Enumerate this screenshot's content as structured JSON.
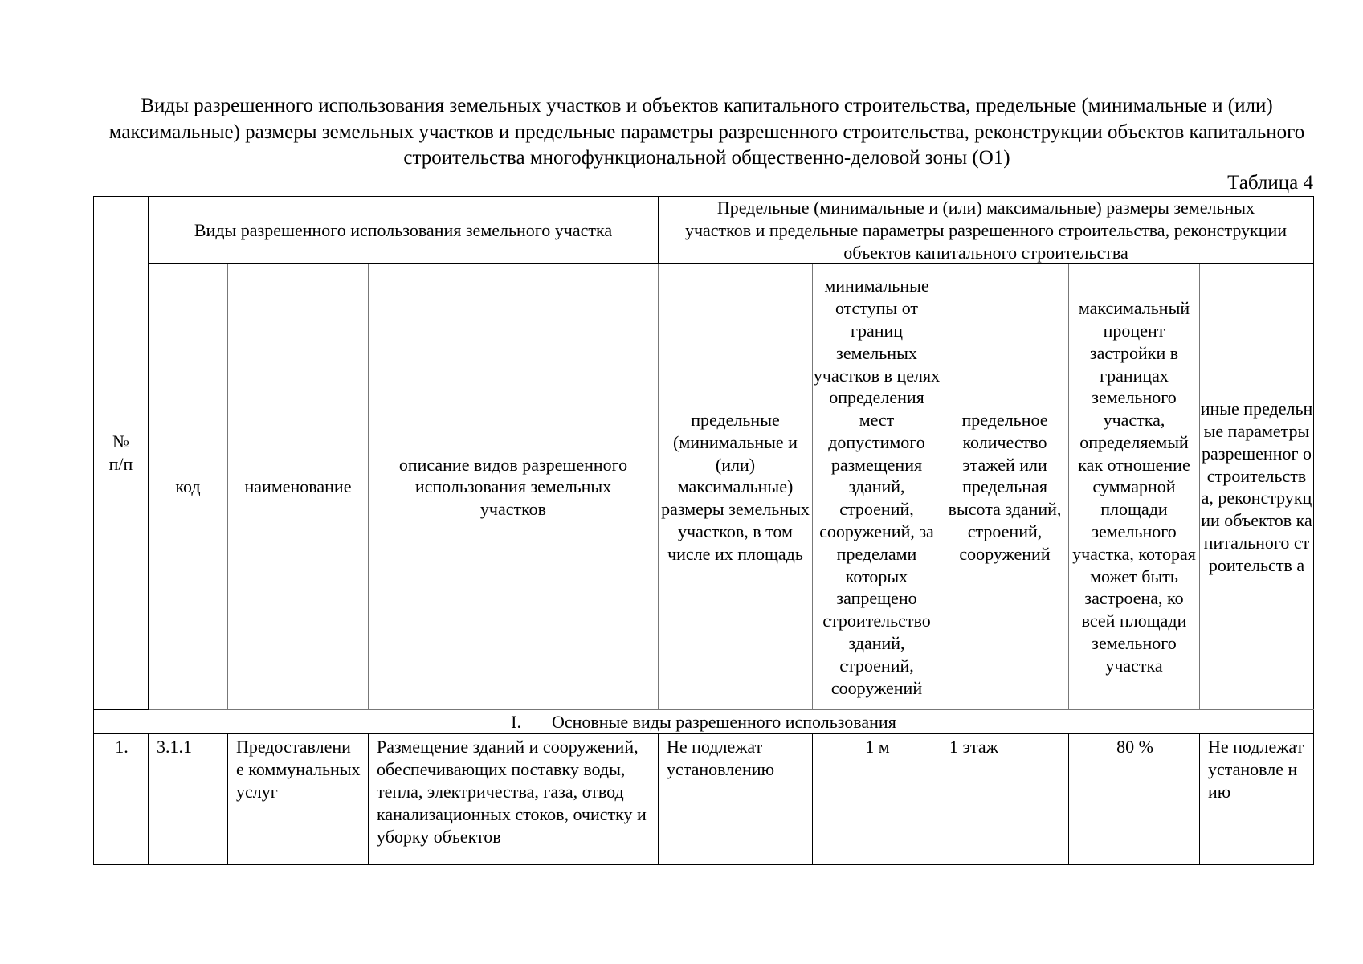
{
  "title": "Виды разрешенного использования земельных участков и объектов капитального строительства, предельные (минимальные и (или) максимальные) размеры земельных участков и предельные параметры разрешенного строительства, реконструкции объектов капитального строительства многофункциональной общественно-деловой зоны (О1)",
  "table_label": "Таблица 4",
  "header": {
    "num": "№ п/п",
    "group_use": "Виды разрешенного использования земельного участка",
    "group_limits": "Предельные (минимальные и (или) максимальные) размеры земельных участков и предельные параметры разрешенного строительства, реконструкции объектов капитального строительства",
    "code": "код",
    "name": "наименование",
    "description": "описание видов разрешенного использования земельных участков",
    "sizes": "предельные (минимальные и (или) максимальные) размеры земельных участков, в том числе их площадь",
    "setbacks": "минимальные отступы от границ земельных участков в целях определения мест допустимого размещения зданий, строений, сооружений, за пределами которых запрещено строительство зданий, строений, сооружений",
    "floors": "предельное количество этажей или предельная высота зданий, строений, сооружений",
    "coverage": "максимальный процент застройки в границах земельного участка, определяемый как отношение суммарной площади земельного участка, которая может быть застроена, ко всей площади земельного участка",
    "other": "иные предельные параметры разрешенног о строительств а, реконструкц ии объектов капитального строительств а"
  },
  "section": {
    "numeral": "I.",
    "label": "Основные виды разрешенного использования"
  },
  "rows": [
    {
      "num": "1.",
      "code": "3.1.1",
      "name": "Предоставлени е коммунальных услуг",
      "description": "Размещение зданий и сооружений, обеспечивающих поставку воды, тепла, электричества, газа, отвод канализационных стоков, очистку и уборку объектов",
      "sizes": "Не подлежат установлению",
      "setbacks": "1 м",
      "floors": "1 этаж",
      "coverage": "80 %",
      "other": "Не подлежат установле нию"
    }
  ]
}
